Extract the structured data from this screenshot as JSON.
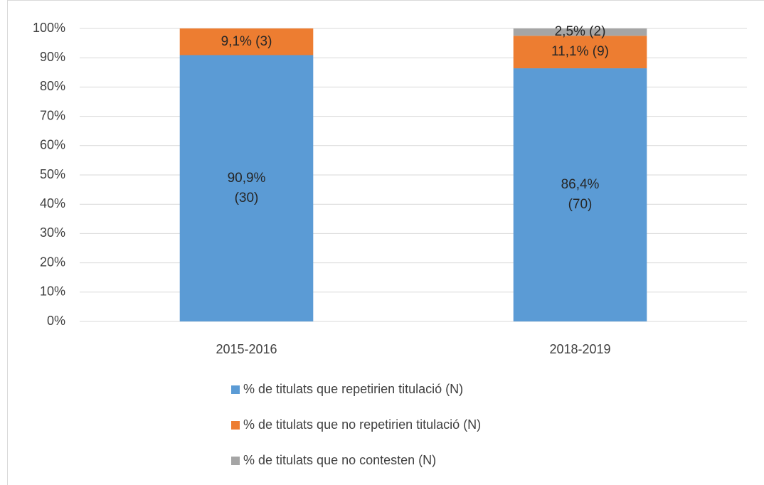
{
  "chart_data": {
    "type": "stacked_bar",
    "categories": [
      "2015-2016",
      "2018-2019"
    ],
    "series": [
      {
        "name": "% de titulats que repetirien titulació (N)",
        "color": "#5b9bd5",
        "values": [
          90.9,
          86.4
        ],
        "value_labels": [
          "90,9% (30)",
          "86,4% (70)"
        ]
      },
      {
        "name": "% de titulats que no repetirien titulació (N)",
        "color": "#ed7d31",
        "values": [
          9.1,
          11.1
        ],
        "value_labels": [
          "9,1% (3)",
          "11,1% (9)"
        ]
      },
      {
        "name": "% de titulats que no contesten (N)",
        "color": "#a5a5a5",
        "values": [
          null,
          2.5
        ],
        "value_labels": [
          null,
          "2,5% (2)"
        ]
      }
    ],
    "ylim": [
      0,
      100
    ],
    "yticks": [
      {
        "value": 0,
        "label": "0%"
      },
      {
        "value": 10,
        "label": "10%"
      },
      {
        "value": 20,
        "label": "20%"
      },
      {
        "value": 30,
        "label": "30%"
      },
      {
        "value": 40,
        "label": "40%"
      },
      {
        "value": 50,
        "label": "50%"
      },
      {
        "value": 60,
        "label": "60%"
      },
      {
        "value": 70,
        "label": "70%"
      },
      {
        "value": 80,
        "label": "80%"
      },
      {
        "value": 90,
        "label": "90%"
      },
      {
        "value": 100,
        "label": "100%"
      }
    ],
    "grid": true,
    "legend": "bottom"
  }
}
